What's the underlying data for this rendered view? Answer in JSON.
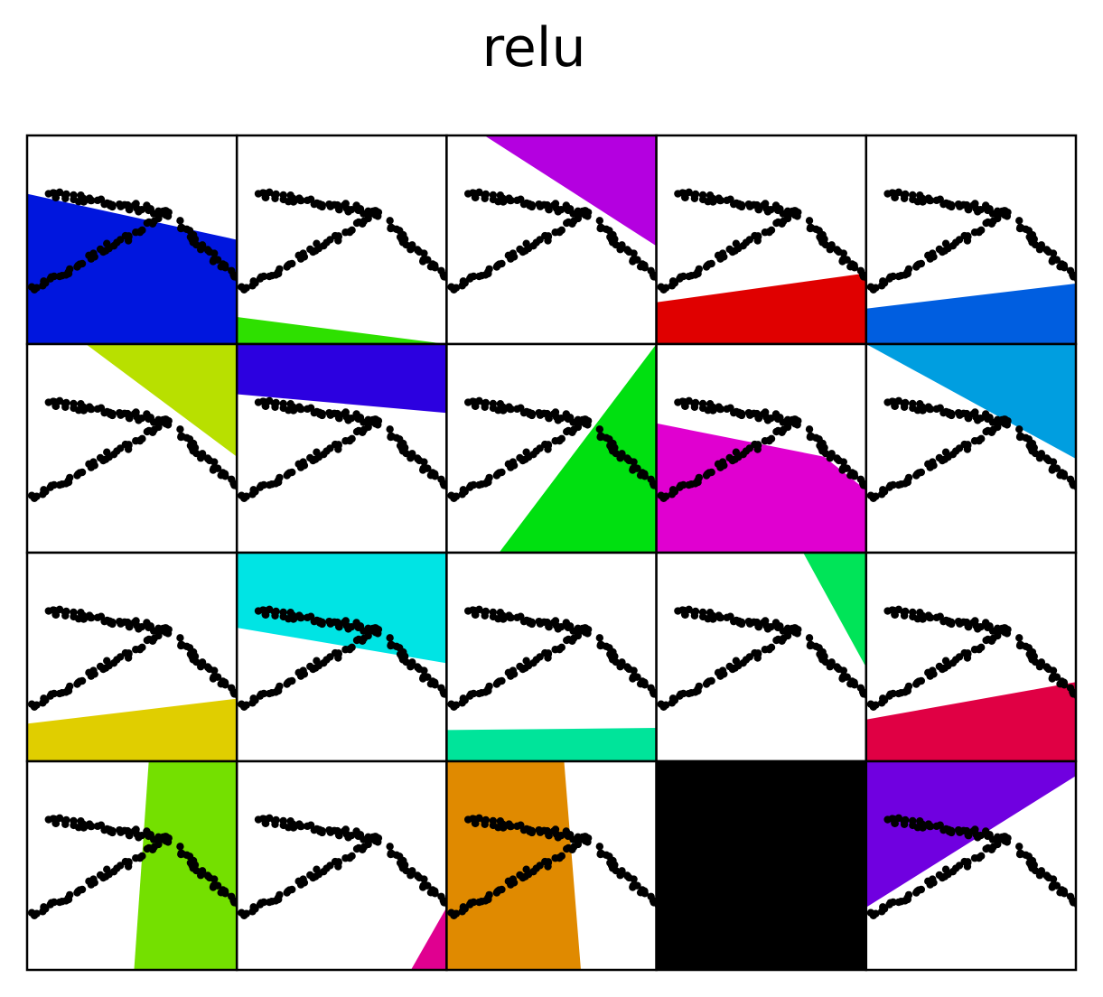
{
  "chart_data": {
    "type": "scatter",
    "title": "relu",
    "layout": {
      "rows": 4,
      "cols": 5
    },
    "xlim": [
      0,
      1
    ],
    "ylim": [
      0,
      1
    ],
    "axes_visible": false,
    "grid": false,
    "points": {
      "color": "#000000",
      "description_segments": [
        {
          "from": [
            0.1,
            0.72
          ],
          "to": [
            0.68,
            0.63
          ]
        },
        {
          "from": [
            0.68,
            0.63
          ],
          "to": [
            0.02,
            0.26
          ]
        },
        {
          "from": [
            0.72,
            0.58
          ],
          "to": [
            1.0,
            0.32
          ]
        }
      ]
    },
    "panels": [
      {
        "color": "#0016de",
        "region": [
          [
            0,
            0.72
          ],
          [
            1,
            0.5
          ],
          [
            1,
            0
          ],
          [
            0,
            0
          ]
        ]
      },
      {
        "color": "#2ee000",
        "region": [
          [
            0,
            0.13
          ],
          [
            1,
            0
          ],
          [
            0,
            0
          ]
        ]
      },
      {
        "color": "#b400e0",
        "region": [
          [
            0.18,
            1
          ],
          [
            1,
            1
          ],
          [
            1,
            0.47
          ]
        ]
      },
      {
        "color": "#e00000",
        "region": [
          [
            0,
            0.2
          ],
          [
            1,
            0.34
          ],
          [
            1,
            0
          ],
          [
            0,
            0
          ]
        ]
      },
      {
        "color": "#005ee0",
        "region": [
          [
            0,
            0.17
          ],
          [
            1,
            0.29
          ],
          [
            1,
            0
          ],
          [
            0,
            0
          ]
        ]
      },
      {
        "color": "#b8e000",
        "region": [
          [
            0.28,
            1
          ],
          [
            1,
            1
          ],
          [
            1,
            0.46
          ]
        ]
      },
      {
        "color": "#2c00e0",
        "region": [
          [
            0,
            1
          ],
          [
            1,
            1
          ],
          [
            1,
            0.67
          ],
          [
            0,
            0.76
          ]
        ]
      },
      {
        "color": "#00e010",
        "region": [
          [
            1,
            1
          ],
          [
            1,
            0
          ],
          [
            0.25,
            0
          ]
        ]
      },
      {
        "color": "#e000d0",
        "region": [
          [
            0,
            0.62
          ],
          [
            0.8,
            0.46
          ],
          [
            1,
            0.3
          ],
          [
            1,
            0
          ],
          [
            0,
            0
          ]
        ]
      },
      {
        "color": "#009ee0",
        "region": [
          [
            0,
            1
          ],
          [
            1,
            1
          ],
          [
            1,
            0.45
          ]
        ]
      },
      {
        "color": "#e0ce00",
        "region": [
          [
            0,
            0.18
          ],
          [
            1,
            0.3
          ],
          [
            1,
            0
          ],
          [
            0,
            0
          ]
        ]
      },
      {
        "color": "#00e4e4",
        "region": [
          [
            0,
            1
          ],
          [
            1,
            1
          ],
          [
            1,
            0.47
          ],
          [
            0,
            0.64
          ]
        ]
      },
      {
        "color": "#00e49a",
        "region": [
          [
            0,
            0.15
          ],
          [
            1,
            0.16
          ],
          [
            1,
            0
          ],
          [
            0,
            0
          ]
        ]
      },
      {
        "color": "#00e458",
        "region": [
          [
            0.7,
            1
          ],
          [
            1,
            1
          ],
          [
            1,
            0.45
          ]
        ]
      },
      {
        "color": "#e00044",
        "region": [
          [
            0,
            0.2
          ],
          [
            1,
            0.38
          ],
          [
            1,
            0
          ],
          [
            0,
            0
          ]
        ]
      },
      {
        "color": "#74e000",
        "region": [
          [
            0.58,
            1
          ],
          [
            1,
            1
          ],
          [
            1,
            0
          ],
          [
            0.51,
            0
          ]
        ]
      },
      {
        "color": "#e00090",
        "region": [
          [
            1,
            0.3
          ],
          [
            1,
            0
          ],
          [
            0.83,
            0
          ]
        ]
      },
      {
        "color": "#e08a00",
        "region": [
          [
            0,
            1
          ],
          [
            0.56,
            1
          ],
          [
            0.64,
            0
          ],
          [
            0,
            0
          ]
        ]
      },
      {
        "color": "#000000",
        "region": [
          [
            0,
            1
          ],
          [
            1,
            1
          ],
          [
            1,
            0
          ],
          [
            0,
            0
          ]
        ]
      },
      {
        "color": "#7000e0",
        "region": [
          [
            0,
            1
          ],
          [
            1,
            1
          ],
          [
            1,
            0.93
          ],
          [
            0,
            0.3
          ]
        ]
      }
    ]
  }
}
